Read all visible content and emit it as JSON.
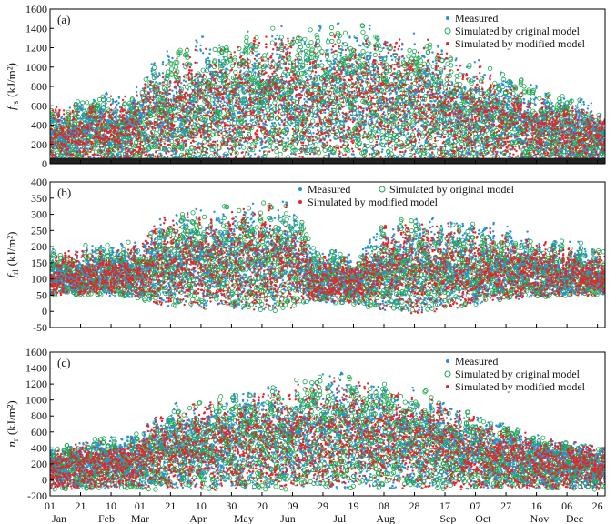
{
  "figure": {
    "month_ticks": [
      "01",
      "21",
      "10",
      "01",
      "21",
      "10",
      "30",
      "20",
      "09",
      "29",
      "19",
      "08",
      "28",
      "17",
      "07",
      "27",
      "16",
      "06",
      "26"
    ],
    "month_tick_days": [
      1,
      21,
      41,
      60,
      80,
      100,
      120,
      140,
      160,
      180,
      200,
      220,
      240,
      260,
      280,
      300,
      320,
      340,
      360
    ],
    "month_names": [
      "Jan",
      "Feb",
      "Mar",
      "Apr",
      "May",
      "Jun",
      "Jul",
      "Aug",
      "Sep",
      "Oct",
      "Nov",
      "Dec"
    ],
    "month_name_days": [
      7,
      38,
      60,
      98,
      128,
      157,
      191,
      221,
      262,
      285,
      322,
      345
    ]
  },
  "colors": {
    "measured": "#2b8fd6",
    "original": "#1aa64b",
    "modified": "#e8242a",
    "baseline": "#222222"
  },
  "chart_data": [
    {
      "panel": "(a)",
      "type": "scatter",
      "ylabel": "f_rs (kJ/m²)",
      "ylabel_main": "f",
      "ylabel_sub": "rs",
      "ylabel_unit": "(kJ/m²)",
      "ylim": [
        0,
        1600
      ],
      "yticks": [
        0,
        200,
        400,
        600,
        800,
        1000,
        1200,
        1400,
        1600
      ],
      "xlim": [
        1,
        365
      ],
      "legend": [
        "Measured",
        "Simulated by original model",
        "Simulated by modified model"
      ],
      "envelope_days": [
        1,
        30,
        60,
        70,
        100,
        130,
        160,
        190,
        220,
        250,
        270,
        300,
        330,
        365
      ],
      "envelope_max": [
        600,
        720,
        790,
        1150,
        1300,
        1400,
        1450,
        1480,
        1420,
        1350,
        1150,
        950,
        780,
        600
      ],
      "series": [
        {
          "name": "Measured",
          "color_key": "measured"
        },
        {
          "name": "Simulated by original model",
          "color_key": "original"
        },
        {
          "name": "Simulated by modified model",
          "color_key": "modified"
        }
      ]
    },
    {
      "panel": "(b)",
      "type": "scatter",
      "ylabel": "f_rl (kJ/m²)",
      "ylabel_main": "f",
      "ylabel_sub": "rl",
      "ylabel_unit": "(kJ/m²)",
      "ylim": [
        -50,
        400
      ],
      "yticks": [
        -50,
        0,
        50,
        100,
        150,
        200,
        250,
        300,
        350,
        400
      ],
      "xlim": [
        1,
        365
      ],
      "legend": [
        "Measured",
        "Simulated by original model",
        "Simulated by modified model"
      ],
      "envelope_days": [
        1,
        30,
        60,
        70,
        100,
        130,
        160,
        175,
        200,
        220,
        240,
        260,
        290,
        320,
        365
      ],
      "envelope_max": [
        190,
        210,
        220,
        300,
        330,
        340,
        360,
        200,
        180,
        280,
        300,
        290,
        270,
        240,
        200
      ],
      "envelope_min": [
        50,
        50,
        40,
        20,
        10,
        5,
        0,
        30,
        20,
        0,
        -10,
        0,
        30,
        40,
        50
      ],
      "series": [
        {
          "name": "Measured",
          "color_key": "measured"
        },
        {
          "name": "Simulated by original model",
          "color_key": "original"
        },
        {
          "name": "Simulated by modified model",
          "color_key": "modified"
        }
      ]
    },
    {
      "panel": "(c)",
      "type": "scatter",
      "ylabel": "n_r (kJ/m²)",
      "ylabel_main": "n",
      "ylabel_sub": "r",
      "ylabel_unit": "(kJ/m²)",
      "ylim": [
        -200,
        1600
      ],
      "yticks": [
        -200,
        0,
        200,
        400,
        600,
        800,
        1000,
        1200,
        1400,
        1600
      ],
      "xlim": [
        1,
        365
      ],
      "legend": [
        "Measured",
        "Simulated by original model",
        "Simulated by modified model"
      ],
      "envelope_days": [
        1,
        30,
        60,
        70,
        100,
        130,
        160,
        190,
        220,
        250,
        270,
        300,
        330,
        365
      ],
      "envelope_max": [
        400,
        520,
        600,
        850,
        1050,
        1150,
        1250,
        1400,
        1250,
        1150,
        900,
        700,
        550,
        450
      ],
      "series": [
        {
          "name": "Measured",
          "color_key": "measured"
        },
        {
          "name": "Simulated by original model",
          "color_key": "original"
        },
        {
          "name": "Simulated by modified model",
          "color_key": "modified"
        }
      ]
    }
  ]
}
